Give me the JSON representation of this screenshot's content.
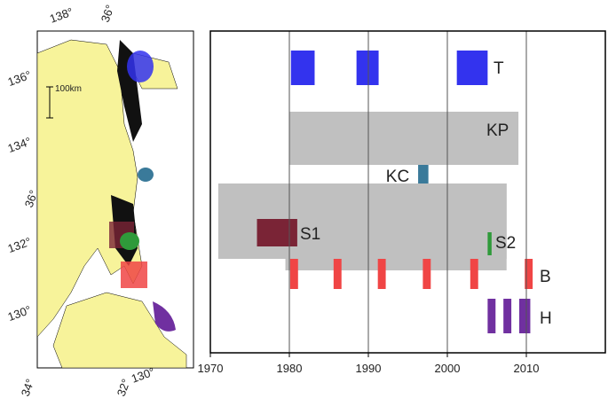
{
  "chart_data": {
    "type": "timeline",
    "xlim": [
      1970,
      2020
    ],
    "xticks": [
      1970,
      1980,
      1990,
      2000,
      2010
    ],
    "grid": true,
    "series": [
      {
        "name": "T",
        "color": "#3333ee",
        "ranges": [
          [
            1980.2,
            1983.2
          ],
          [
            1988.5,
            1991.3
          ],
          [
            2001.2,
            2005.1
          ]
        ]
      },
      {
        "name": "KP",
        "color": "#c0c0c0",
        "ranges": [
          [
            1980,
            2009
          ]
        ]
      },
      {
        "name": "KC",
        "color": "#3a7a9a",
        "ranges": [
          [
            1996.3,
            1997.6
          ]
        ]
      },
      {
        "color": "#c0c0c0",
        "ranges": [
          [
            1971,
            2007.5
          ],
          [
            1979.5,
            2007.5
          ]
        ]
      },
      {
        "name": "S1",
        "color": "#7a2436",
        "ranges": [
          [
            1975.9,
            1981
          ]
        ]
      },
      {
        "name": "S2",
        "color": "#2f9a3a",
        "ranges": [
          [
            2005.1,
            2005.6
          ]
        ]
      },
      {
        "name": "B",
        "color": "#f04545",
        "ranges": [
          [
            1980.1,
            1981.1
          ],
          [
            1985.6,
            1986.6
          ],
          [
            1991.2,
            1992.2
          ],
          [
            1996.9,
            1997.9
          ],
          [
            2002.9,
            2003.9
          ],
          [
            2009.8,
            2010.8
          ]
        ]
      },
      {
        "name": "H",
        "color": "#7030a0",
        "ranges": [
          [
            2005.1,
            2006.1
          ],
          [
            2007.1,
            2008.1
          ],
          [
            2009.1,
            2010.5
          ]
        ]
      }
    ]
  },
  "map": {
    "top_labels": [
      "138°",
      "36°"
    ],
    "left_labels": [
      "136°",
      "134°",
      "36°",
      "132°",
      "130°"
    ],
    "bottom_labels": [
      "34°",
      "32°",
      "130°"
    ],
    "scale": "100km"
  }
}
